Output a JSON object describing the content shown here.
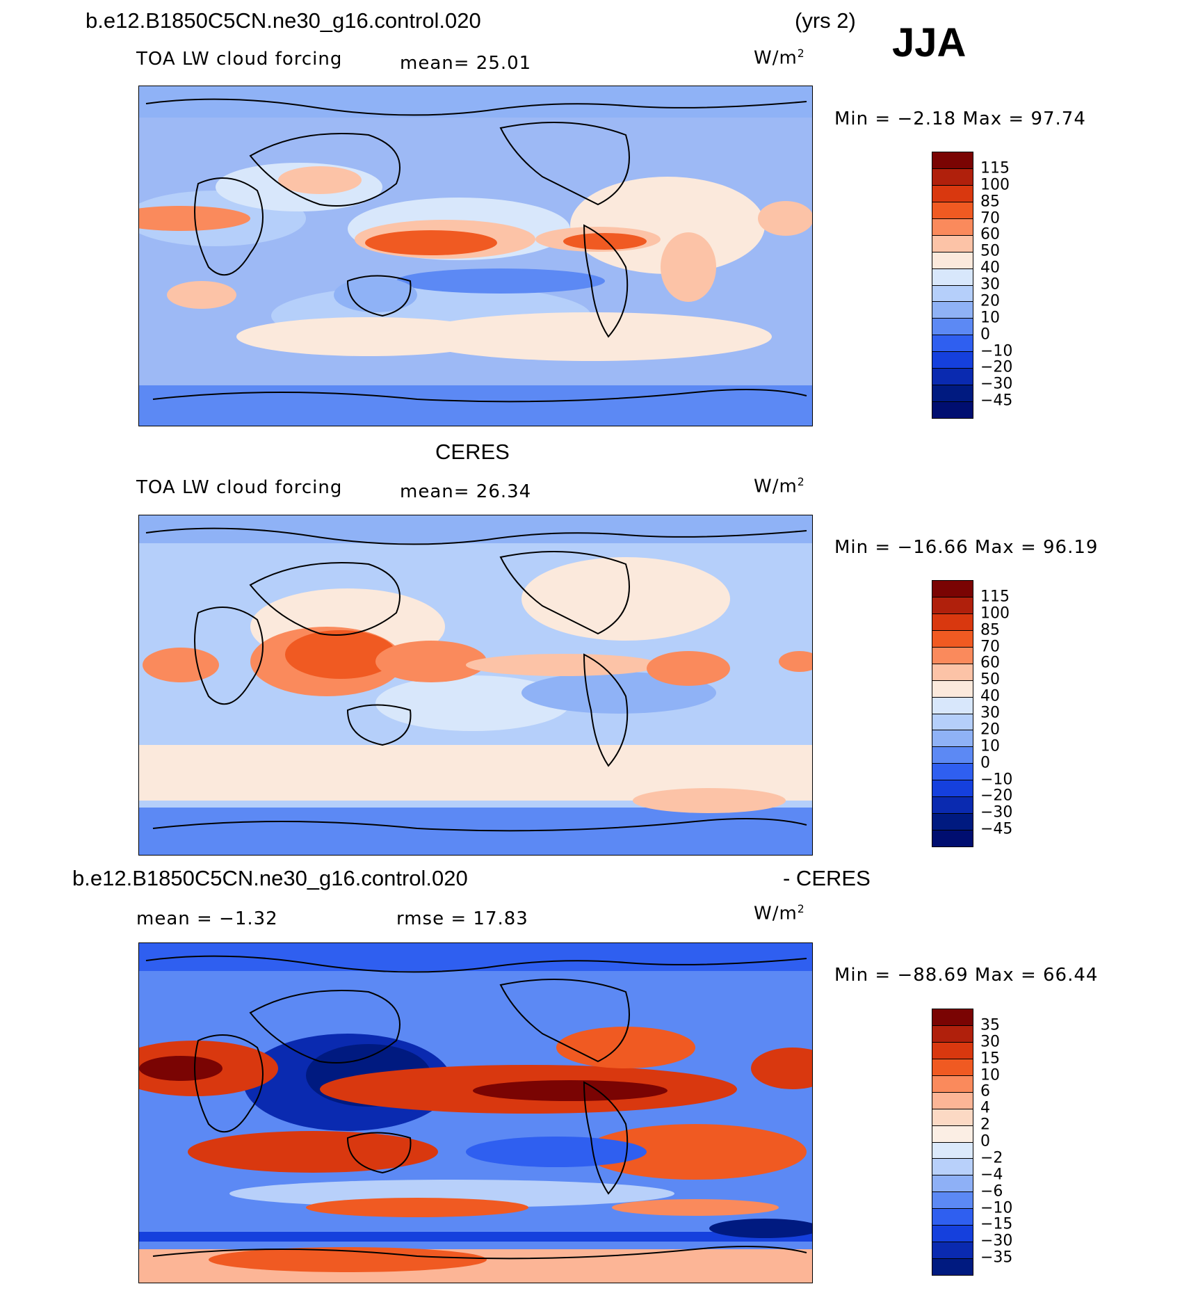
{
  "header": {
    "case_name": "b.e12.B1850C5CN.ne30_g16.control.020",
    "years": "(yrs 2)",
    "season": "JJA"
  },
  "panels": [
    {
      "id": "model",
      "title": "",
      "variable": "TOA LW cloud forcing",
      "stat1": "mean=  25.01",
      "units_base": "W/m",
      "units_exp": "2",
      "minmax": "Min =   −2.18 Max =   97.74",
      "colorbar": {
        "colors": [
          "#7a0403",
          "#b0200c",
          "#d9380f",
          "#f05a22",
          "#fa8a5c",
          "#fcc3a7",
          "#fbe9dc",
          "#d8e7fb",
          "#b5cffa",
          "#8fb2f6",
          "#5c89f4",
          "#2f5ff0",
          "#1540dd",
          "#0a2ab0",
          "#001a80",
          "#000e70"
        ],
        "ticks": [
          "115",
          "100",
          "85",
          "70",
          "60",
          "50",
          "40",
          "30",
          "20",
          "10",
          "0",
          "−10",
          "−20",
          "−30",
          "−45"
        ]
      }
    },
    {
      "id": "obs",
      "title": "CERES",
      "variable": "TOA LW cloud forcing",
      "stat1": "mean=  26.34",
      "units_base": "W/m",
      "units_exp": "2",
      "minmax": "Min = −16.66 Max =   96.19",
      "colorbar": {
        "colors": [
          "#7a0403",
          "#b0200c",
          "#d9380f",
          "#f05a22",
          "#fa8a5c",
          "#fcc3a7",
          "#fbe9dc",
          "#d8e7fb",
          "#b5cffa",
          "#8fb2f6",
          "#5c89f4",
          "#2f5ff0",
          "#1540dd",
          "#0a2ab0",
          "#001a80",
          "#000e70"
        ],
        "ticks": [
          "115",
          "100",
          "85",
          "70",
          "60",
          "50",
          "40",
          "30",
          "20",
          "10",
          "0",
          "−10",
          "−20",
          "−30",
          "−45"
        ]
      }
    },
    {
      "id": "diff",
      "title_left": "b.e12.B1850C5CN.ne30_g16.control.020",
      "title_right": "- CERES",
      "stat1": "mean =   −1.32",
      "stat2": "rmse =   17.83",
      "units_base": "W/m",
      "units_exp": "2",
      "minmax": "Min = −88.69 Max =   66.44",
      "colorbar": {
        "colors": [
          "#7a0403",
          "#b0200c",
          "#d9380f",
          "#f05a22",
          "#fa8a5c",
          "#fcb596",
          "#fcd9c4",
          "#fbeee4",
          "#dbe9fb",
          "#b8d0fa",
          "#8eb0f6",
          "#5c89f4",
          "#2f5ff0",
          "#1540dd",
          "#0a2ab0",
          "#001a80"
        ],
        "ticks": [
          "35",
          "30",
          "15",
          "10",
          "6",
          "4",
          "2",
          "0",
          "−2",
          "−4",
          "−6",
          "−10",
          "−15",
          "−30",
          "−35"
        ]
      }
    }
  ]
}
